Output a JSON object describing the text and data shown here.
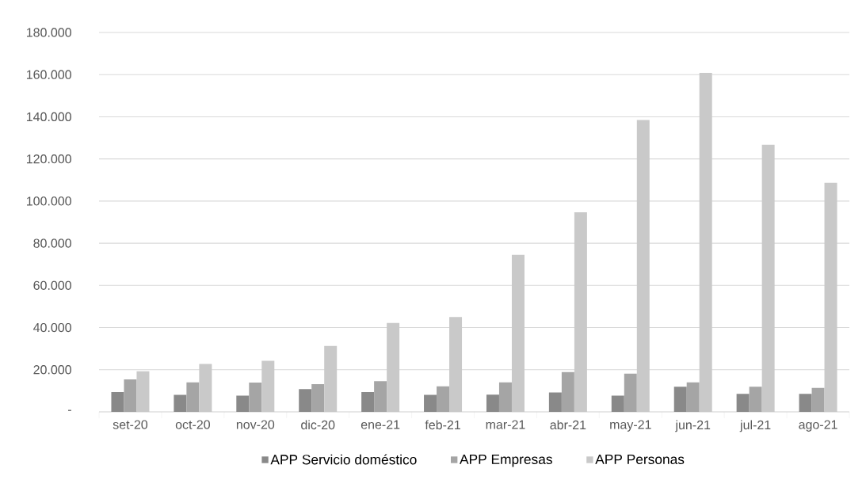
{
  "chart_data": {
    "type": "bar",
    "categories": [
      "set-20",
      "oct-20",
      "nov-20",
      "dic-20",
      "ene-21",
      "feb-21",
      "mar-21",
      "abr-21",
      "may-21",
      "jun-21",
      "jul-21",
      "ago-21"
    ],
    "series": [
      {
        "name": "APP Servicio doméstico",
        "color": "#898989",
        "values": [
          9400,
          8100,
          7700,
          10800,
          9400,
          8100,
          8200,
          9200,
          7700,
          11900,
          8500,
          8500
        ]
      },
      {
        "name": "APP Empresas",
        "color": "#a5a5a5",
        "values": [
          15400,
          14000,
          13900,
          13100,
          14600,
          12100,
          14000,
          18900,
          18100,
          14000,
          11900,
          11400
        ]
      },
      {
        "name": "APP Personas",
        "color": "#c9c9c9",
        "values": [
          19300,
          22700,
          24200,
          31300,
          42200,
          45000,
          74500,
          94700,
          138500,
          160800,
          126700,
          108700
        ]
      }
    ],
    "ylim": [
      0,
      180000
    ],
    "yticks": [
      {
        "value": 0,
        "label": "-"
      },
      {
        "value": 20000,
        "label": "20.000"
      },
      {
        "value": 40000,
        "label": "40.000"
      },
      {
        "value": 60000,
        "label": "60.000"
      },
      {
        "value": 80000,
        "label": "80.000"
      },
      {
        "value": 100000,
        "label": "100.000"
      },
      {
        "value": 120000,
        "label": "120.000"
      },
      {
        "value": 140000,
        "label": "140.000"
      },
      {
        "value": 160000,
        "label": "160.000"
      },
      {
        "value": 180000,
        "label": "180.000"
      }
    ],
    "grid": "y",
    "legend": "bottom"
  }
}
